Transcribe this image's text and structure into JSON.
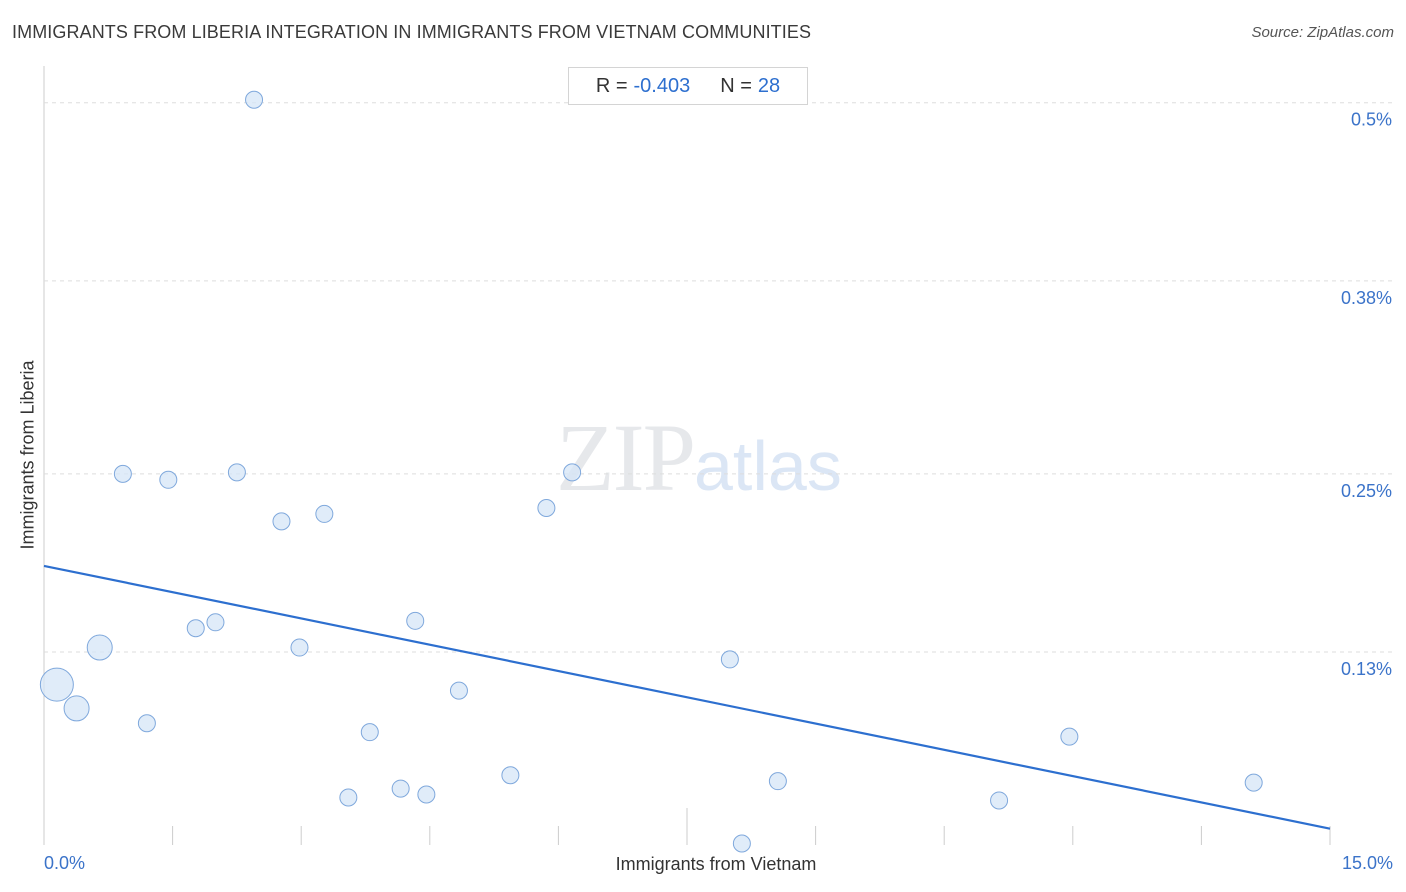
{
  "title": "IMMIGRANTS FROM LIBERIA INTEGRATION IN IMMIGRANTS FROM VIETNAM COMMUNITIES",
  "source": "Source: ZipAtlas.com",
  "stats": {
    "r_label": "R =",
    "r_value": "-0.403",
    "n_label": "N =",
    "n_value": "28"
  },
  "watermark": {
    "zip": "ZIP",
    "atlas": "atlas"
  },
  "chart_data": {
    "type": "scatter",
    "xlabel": "Immigrants from Vietnam",
    "ylabel": "Immigrants from Liberia",
    "xlim": [
      0,
      15
    ],
    "ylim": [
      0,
      0.52
    ],
    "x_tick_labels": [
      "0.0%",
      "15.0%"
    ],
    "y_ticks": [
      0.13,
      0.25,
      0.38,
      0.5
    ],
    "y_tick_labels": [
      "0.13%",
      "0.25%",
      "0.38%",
      "0.5%"
    ],
    "grid": "horizontal dashed",
    "colors": {
      "point_fill": "#d6e5f7",
      "point_stroke": "#7fa8dc",
      "trend": "#2d6fcf",
      "tick_label": "#3b73c9"
    },
    "points": [
      {
        "x": 0.15,
        "y": 0.108,
        "size": "large"
      },
      {
        "x": 0.38,
        "y": 0.092,
        "size": "medium"
      },
      {
        "x": 0.65,
        "y": 0.133,
        "size": "medium"
      },
      {
        "x": 0.92,
        "y": 0.25,
        "size": "small"
      },
      {
        "x": 1.2,
        "y": 0.082,
        "size": "small"
      },
      {
        "x": 1.45,
        "y": 0.246,
        "size": "small"
      },
      {
        "x": 1.77,
        "y": 0.146,
        "size": "small"
      },
      {
        "x": 2.0,
        "y": 0.15,
        "size": "small"
      },
      {
        "x": 2.25,
        "y": 0.251,
        "size": "small"
      },
      {
        "x": 2.45,
        "y": 0.502,
        "size": "small"
      },
      {
        "x": 2.77,
        "y": 0.218,
        "size": "small"
      },
      {
        "x": 2.98,
        "y": 0.133,
        "size": "small"
      },
      {
        "x": 3.27,
        "y": 0.223,
        "size": "small"
      },
      {
        "x": 3.55,
        "y": 0.032,
        "size": "small"
      },
      {
        "x": 3.8,
        "y": 0.076,
        "size": "small"
      },
      {
        "x": 4.16,
        "y": 0.038,
        "size": "small"
      },
      {
        "x": 4.33,
        "y": 0.151,
        "size": "small"
      },
      {
        "x": 4.46,
        "y": 0.034,
        "size": "small"
      },
      {
        "x": 4.84,
        "y": 0.104,
        "size": "small"
      },
      {
        "x": 5.44,
        "y": 0.047,
        "size": "small"
      },
      {
        "x": 5.86,
        "y": 0.227,
        "size": "small"
      },
      {
        "x": 6.16,
        "y": 0.251,
        "size": "small"
      },
      {
        "x": 8.0,
        "y": 0.125,
        "size": "small"
      },
      {
        "x": 8.14,
        "y": 0.001,
        "size": "small"
      },
      {
        "x": 8.56,
        "y": 0.043,
        "size": "small"
      },
      {
        "x": 11.14,
        "y": 0.03,
        "size": "small"
      },
      {
        "x": 11.96,
        "y": 0.073,
        "size": "small"
      },
      {
        "x": 14.11,
        "y": 0.042,
        "size": "small"
      }
    ],
    "trendline": {
      "x": [
        0,
        15
      ],
      "y": [
        0.188,
        0.011
      ]
    }
  }
}
